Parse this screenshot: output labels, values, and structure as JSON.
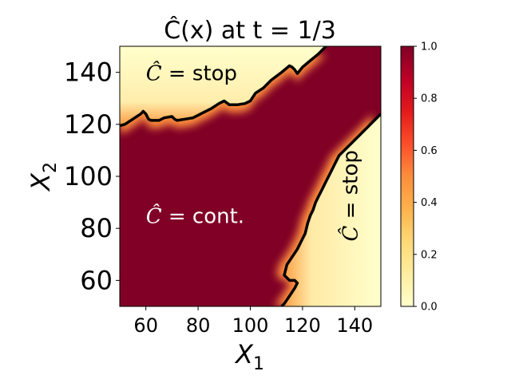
{
  "chart_data": {
    "type": "heatmap",
    "title": "Ĉ(x) at t = 1/3",
    "xlabel": "X",
    "xlabel_sub": "1",
    "ylabel": "X",
    "ylabel_sub": "2",
    "xlim": [
      50,
      150
    ],
    "ylim": [
      50,
      150
    ],
    "xticks": [
      60,
      80,
      100,
      120,
      140
    ],
    "yticks": [
      60,
      80,
      100,
      120,
      140
    ],
    "colorbar": {
      "colormap": "YlOrRd",
      "range": [
        0.0,
        1.0
      ],
      "ticks": [
        "0.0",
        "0.2",
        "0.4",
        "0.6",
        "0.8",
        "1.0"
      ]
    },
    "annotations": [
      {
        "text": "Ĉ = stop",
        "x": 60,
        "y": 137,
        "color": "#000000",
        "rotation": 0
      },
      {
        "text": "Ĉ = cont.",
        "x": 60,
        "y": 82,
        "color": "#ffffff",
        "rotation": 0
      },
      {
        "text": "Ĉ = stop",
        "x": 141,
        "y": 75,
        "color": "#000000",
        "rotation": -90
      }
    ],
    "boundaries": [
      {
        "name": "upper",
        "points": [
          [
            50,
            119.5
          ],
          [
            52,
            120
          ],
          [
            55,
            122
          ],
          [
            58,
            124
          ],
          [
            59,
            125
          ],
          [
            60,
            124
          ],
          [
            61,
            122
          ],
          [
            62,
            121.5
          ],
          [
            65,
            121.5
          ],
          [
            67,
            122.5
          ],
          [
            70,
            123
          ],
          [
            71,
            122
          ],
          [
            72,
            121.5
          ],
          [
            75,
            122
          ],
          [
            78,
            122.5
          ],
          [
            80,
            123.5
          ],
          [
            82,
            124.5
          ],
          [
            85,
            126
          ],
          [
            88,
            128
          ],
          [
            90,
            129
          ],
          [
            92,
            127.5
          ],
          [
            95,
            127.5
          ],
          [
            98,
            128
          ],
          [
            100,
            129
          ],
          [
            102,
            132
          ],
          [
            105,
            134
          ],
          [
            108,
            137
          ],
          [
            112,
            140
          ],
          [
            115,
            142.5
          ],
          [
            116,
            142
          ],
          [
            117,
            141
          ],
          [
            118,
            139.5
          ],
          [
            120,
            142
          ],
          [
            123,
            144.5
          ],
          [
            126,
            147
          ],
          [
            129,
            150
          ]
        ]
      },
      {
        "name": "lower",
        "points": [
          [
            150,
            124
          ],
          [
            147,
            121
          ],
          [
            145,
            119
          ],
          [
            143,
            117
          ],
          [
            141,
            115
          ],
          [
            138,
            112
          ],
          [
            136,
            110
          ],
          [
            134,
            108
          ],
          [
            133,
            106
          ],
          [
            132,
            104
          ],
          [
            131,
            102
          ],
          [
            130,
            100
          ],
          [
            129,
            98
          ],
          [
            128,
            96
          ],
          [
            127,
            94
          ],
          [
            126,
            92
          ],
          [
            125,
            90
          ],
          [
            124,
            87
          ],
          [
            123,
            85
          ],
          [
            122,
            82
          ],
          [
            121,
            78
          ],
          [
            120,
            76
          ],
          [
            118,
            72
          ],
          [
            116,
            69
          ],
          [
            114,
            66
          ],
          [
            113,
            62
          ],
          [
            115,
            60
          ],
          [
            117,
            60
          ],
          [
            118,
            59
          ],
          [
            117,
            57
          ],
          [
            115,
            54
          ],
          [
            113,
            51
          ],
          [
            112,
            50
          ]
        ]
      }
    ]
  }
}
